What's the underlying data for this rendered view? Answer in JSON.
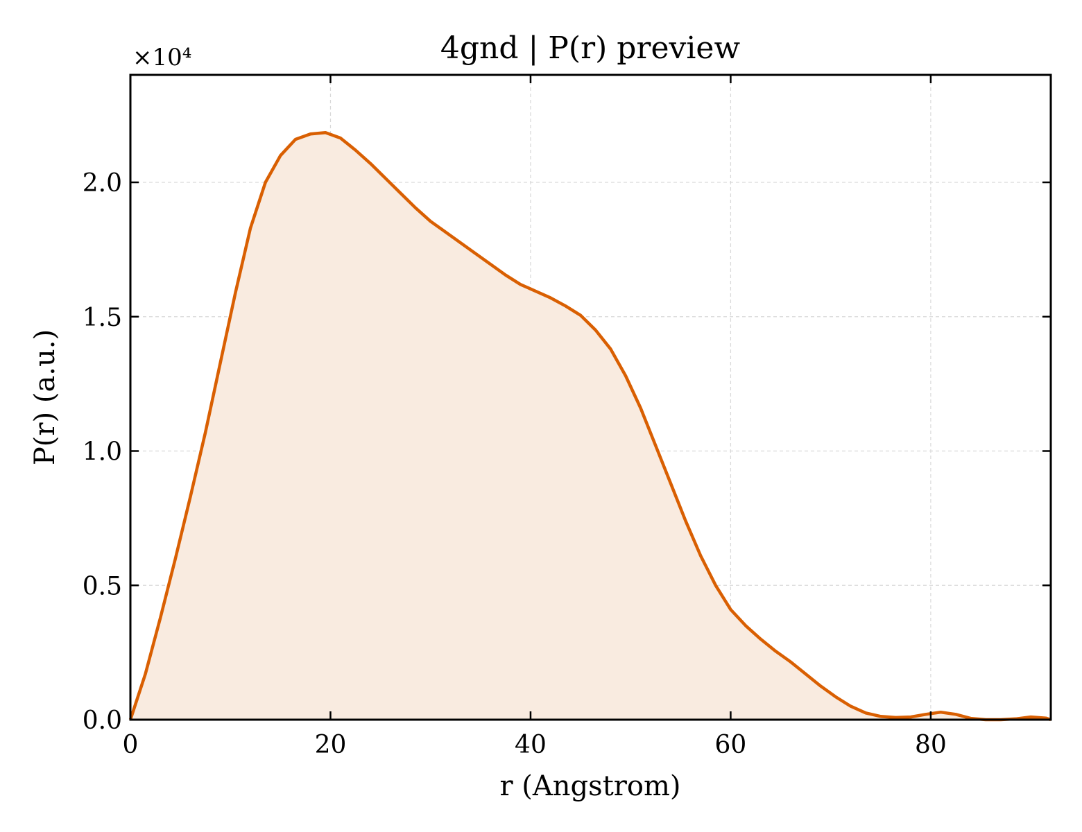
{
  "chart_data": {
    "type": "area",
    "title": "4gnd | P(r) preview",
    "xlabel": "r (Angstrom)",
    "ylabel": "P(r) (a.u.)",
    "y_offset_label": "×10⁴",
    "y_scale": 10000,
    "xlim": [
      0,
      92
    ],
    "ylim": [
      0,
      24000
    ],
    "grid": true,
    "x_ticks": [
      0,
      20,
      40,
      60,
      80
    ],
    "x_tick_labels": [
      "0",
      "20",
      "40",
      "60",
      "80"
    ],
    "y_ticks": [
      0,
      5000,
      10000,
      15000,
      20000
    ],
    "y_tick_labels": [
      "0.0",
      "0.5",
      "1.0",
      "1.5",
      "2.0"
    ],
    "colors": {
      "line": "#d95f02",
      "fill": "#f9ebe0",
      "grid": "#d9d9d9"
    },
    "series": [
      {
        "x": [
          0,
          1.5,
          3,
          4.5,
          6,
          7.5,
          9,
          10.5,
          12,
          13.5,
          15,
          16.5,
          18,
          19.5,
          21,
          22.5,
          24,
          25.5,
          27,
          28.5,
          30,
          31.5,
          33,
          34.5,
          36,
          37.5,
          39,
          40.5,
          42,
          43.5,
          45,
          46.5,
          48,
          49.5,
          51,
          52.5,
          54,
          55.5,
          57,
          58.5,
          60,
          61.5,
          63,
          64.5,
          66,
          67.5,
          69,
          70.5,
          72,
          73.5,
          75,
          76.5,
          78,
          79.5,
          81,
          82.5,
          84,
          85.5,
          87,
          88.5,
          90,
          91.5,
          92
        ],
        "y": [
          0,
          1700,
          3800,
          6000,
          8300,
          10700,
          13300,
          15900,
          18300,
          20000,
          21000,
          21600,
          21800,
          21850,
          21650,
          21200,
          20700,
          20150,
          19600,
          19050,
          18550,
          18150,
          17750,
          17350,
          16950,
          16550,
          16200,
          15950,
          15700,
          15400,
          15050,
          14500,
          13800,
          12800,
          11600,
          10200,
          8800,
          7400,
          6100,
          5000,
          4100,
          3500,
          3000,
          2550,
          2150,
          1700,
          1250,
          850,
          500,
          250,
          120,
          80,
          100,
          200,
          280,
          200,
          50,
          -50,
          -50,
          30,
          100,
          60,
          0
        ]
      }
    ]
  }
}
